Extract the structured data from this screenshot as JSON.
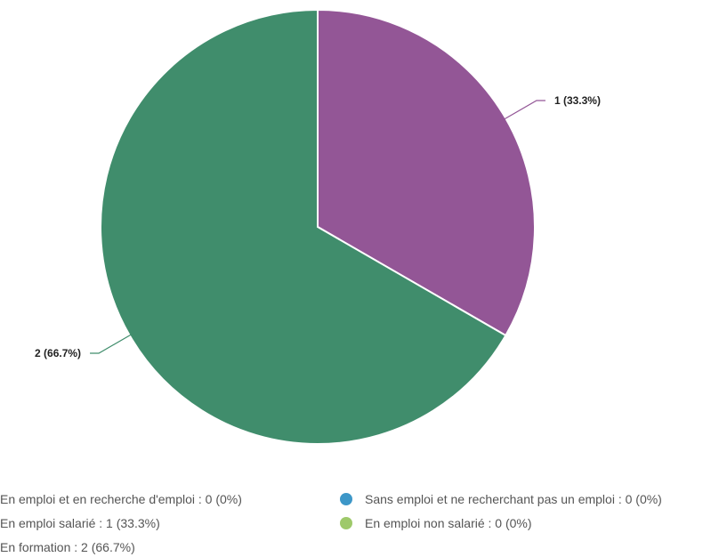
{
  "chart_data": {
    "type": "pie",
    "title": "",
    "categories": [
      "En emploi et en recherche d'emploi",
      "Sans emploi et ne recherchant pas un emploi",
      "En emploi salarié",
      "En emploi non salarié",
      "En formation"
    ],
    "values": [
      0,
      0,
      1,
      0,
      2
    ],
    "colors": [
      "#e8703a",
      "#3d97c8",
      "#935696",
      "#9ec96a",
      "#408d6c"
    ],
    "slice_labels": [
      "",
      "",
      "1 (33.3%)",
      "",
      "2 (66.7%)"
    ],
    "legend": {
      "placement": "bottom",
      "entries": [
        "En emploi et en recherche d'emploi : 0 (0%)",
        "Sans emploi et ne recherchant pas un emploi : 0 (0%)",
        "En emploi salarié : 1 (33.3%)",
        "En emploi non salarié : 0 (0%)",
        "En formation : 2 (66.7%)"
      ]
    }
  }
}
